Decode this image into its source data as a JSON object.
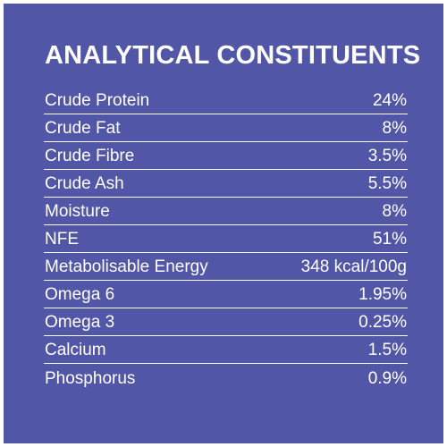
{
  "title": "ANALYTICAL CONSTITUENTS",
  "rows": [
    {
      "label": "Crude Protein",
      "value": "24%"
    },
    {
      "label": "Crude Fat",
      "value": "8%"
    },
    {
      "label": "Crude Fibre",
      "value": "3.5%"
    },
    {
      "label": "Crude Ash",
      "value": "5.5%"
    },
    {
      "label": "Moisture",
      "value": "8%"
    },
    {
      "label": "NFE",
      "value": "51%"
    },
    {
      "label": "Metabolisable Energy",
      "value": "348 kcal/100g"
    },
    {
      "label": "Omega 6",
      "value": "1.95%"
    },
    {
      "label": "Omega 3",
      "value": "0.25%"
    },
    {
      "label": "Calcium",
      "value": "1.5%"
    },
    {
      "label": "Phosphorus",
      "value": "0.9%"
    }
  ],
  "colors": {
    "background": "#5256a6",
    "text": "#ffffff"
  }
}
